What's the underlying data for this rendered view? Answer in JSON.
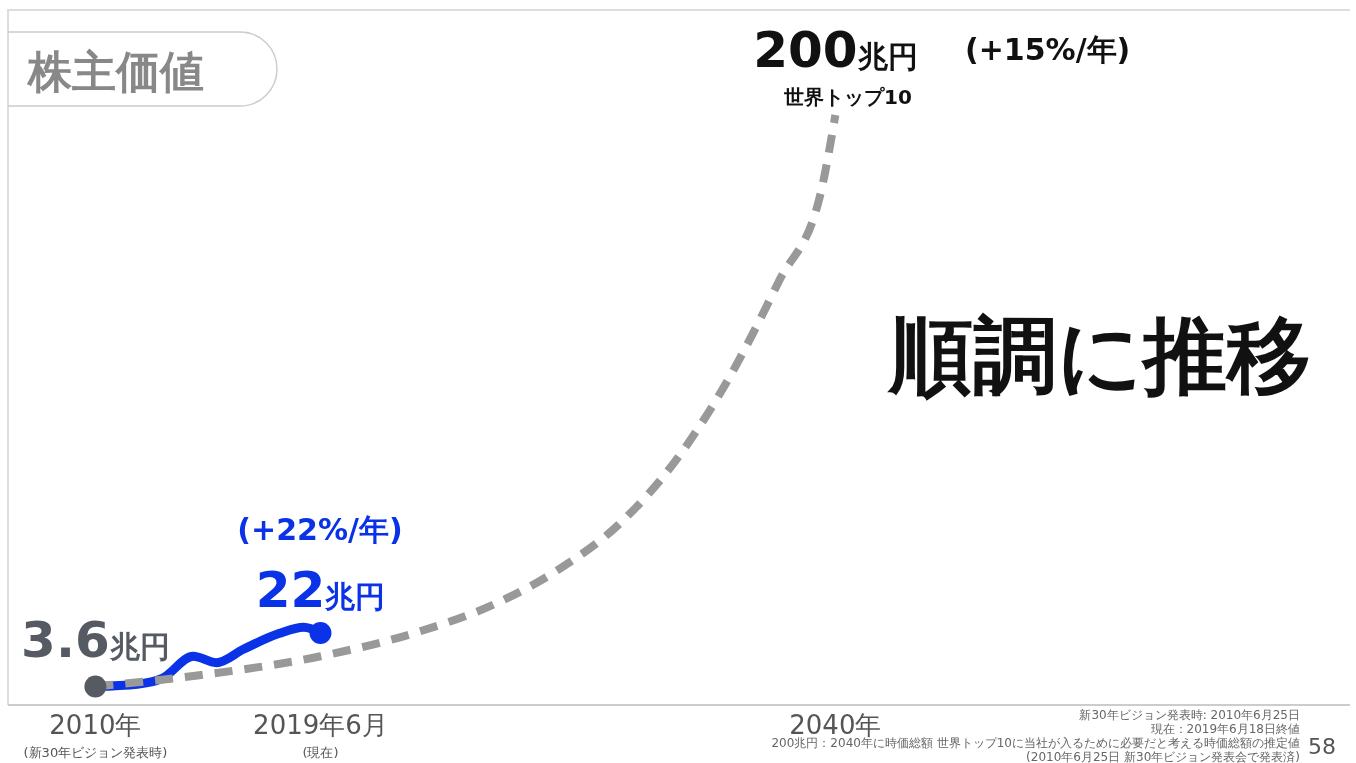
{
  "chart_data": {
    "type": "line",
    "title": "株主価値",
    "xlim": [
      "2007-01",
      "2060-06"
    ],
    "xticks": [
      {
        "value": "2010-06",
        "label": "2010年"
      },
      {
        "value": "2019-06",
        "label": "2019年6月"
      },
      {
        "value": "2040",
        "label": "2040年"
      }
    ],
    "series": [
      {
        "color": "#0a32e6",
        "x": [
          "2010-06",
          "2012-02",
          "2013-02",
          "2014-05",
          "2015-04",
          "2016-05",
          "2017-10",
          "2018-10",
          "2019-06"
        ],
        "values": [
          3.6,
          4.4,
          6.4,
          14,
          11.8,
          16.4,
          21.8,
          24,
          22
        ]
      },
      {
        "line_style": "dashed",
        "color": "#999999",
        "x": [
          "2010-06",
          "2014-07",
          "2019-06",
          "2023-05",
          "2026-07",
          "2029-01",
          "2031-05",
          "2033-10",
          "2035-10",
          "2037-10",
          "2039-06",
          "2040"
        ],
        "values": [
          3.6,
          7.4,
          14,
          22.4,
          32.4,
          44.2,
          59.2,
          82.8,
          109.6,
          143,
          173.2,
          200
        ],
        "value_labels": [
          null,
          null,
          null,
          null,
          null,
          null,
          null,
          null,
          null,
          null,
          null,
          "200兆円"
        ]
      },
      {
        "type": "scatter",
        "marker": "circle",
        "color": "#555a63",
        "x": [
          "2010-06"
        ],
        "values": [
          3.6
        ],
        "value_labels": [
          "3.6兆円"
        ]
      },
      {
        "type": "scatter",
        "marker": "circle",
        "color": "#0a32e6",
        "x": [
          "2019-06"
        ],
        "values": [
          22
        ],
        "value_labels": [
          "22兆円"
        ]
      }
    ],
    "annotations": [
      "(+22%/年)",
      "(+15%/年)",
      "世界トップ10",
      "順調に推移",
      "新30年ビジョン発表時: 2010年6月25日",
      "現在：2019年6月18日終値",
      "200兆円：2040年に時価総額 世界トップ10に当社が入るために必要だと考える時価総額の推定値 (2010年6月25日 新30年ビジョン発表会で発表済)",
      "58",
      "(新30年ビジョン発表時)",
      "(現在)"
    ]
  }
}
